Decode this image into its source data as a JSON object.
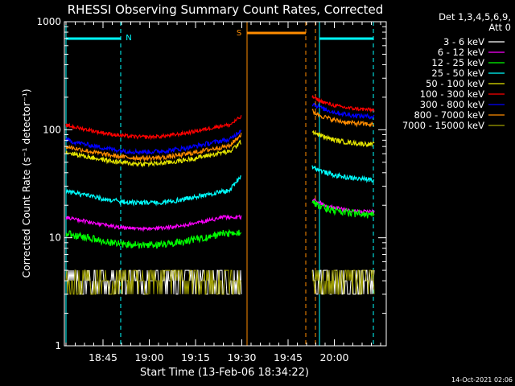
{
  "chart_data": {
    "type": "line",
    "title": "RHESSI Observing Summary Count Rates, Corrected",
    "xlabel": "Start Time (13-Feb-06 18:34:22)",
    "ylabel": "Corrected Count Rate (s⁻¹ detector⁻¹)",
    "y_scale": "log",
    "ylim": [
      1,
      1000
    ],
    "x_ticks": [
      "18:45",
      "19:00",
      "19:15",
      "19:30",
      "19:45",
      "20:00"
    ],
    "y_ticks": [
      "1",
      "10",
      "100",
      "1000"
    ],
    "detector_label_1": "Det 1,3,4,5,6,9,",
    "detector_label_2": "Att 0",
    "timestamp": "14-Oct-2021 02:06",
    "markers": [
      {
        "label": "N",
        "color": "#00ffff"
      },
      {
        "label": "S",
        "color": "#ff8c00"
      }
    ],
    "series": [
      {
        "name": "3 - 6 keV",
        "color": "#ffffff",
        "level_before": 3,
        "level_after": 3
      },
      {
        "name": "6 - 12 keV",
        "color": "#ff00ff",
        "level_before": 15.5,
        "level_after": 17
      },
      {
        "name": "12 - 25 keV",
        "color": "#00ff00",
        "level_before": 11,
        "level_after": 16
      },
      {
        "name": "25 - 50 keV",
        "color": "#00ffff",
        "level_before": 27,
        "level_after": 34
      },
      {
        "name": "50 - 100 keV",
        "color": "#e6e600",
        "level_before": 62,
        "level_after": 72
      },
      {
        "name": "100 - 300 keV",
        "color": "#ff0000",
        "level_before": 110,
        "level_after": 150
      },
      {
        "name": "300 - 800 keV",
        "color": "#0000ff",
        "level_before": 80,
        "level_after": 130
      },
      {
        "name": "800 - 7000 keV",
        "color": "#ff8c00",
        "level_before": 70,
        "level_after": 110
      },
      {
        "name": "7000 - 15000 keV",
        "color": "#a0a000",
        "level_before": 3,
        "level_after": 3
      }
    ]
  }
}
